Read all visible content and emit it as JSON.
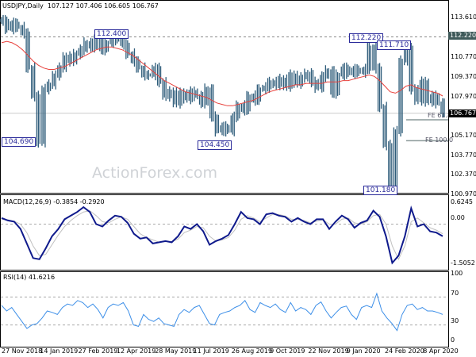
{
  "header": {
    "symbol": "USDJPY,Daily",
    "ohlc": "107.127 107.406 106.605 106.767"
  },
  "watermark": "ActionForex.com",
  "chart_data": [
    {
      "type": "bar",
      "pane": "price",
      "ylim": [
        100.9,
        114.3
      ],
      "y_ticks": [
        "113.610",
        "110.770",
        "109.370",
        "107.970",
        "105.170",
        "103.770",
        "102.370",
        "100.970"
      ],
      "last_price": "106.767",
      "resistance_level": "112.220",
      "hidden_tick": "106.570",
      "close": [
        113.4,
        112.8,
        113.2,
        112.9,
        112.5,
        110.0,
        108.0,
        104.69,
        108.5,
        108.8,
        109.5,
        110.0,
        110.8,
        110.5,
        111.0,
        111.3,
        111.8,
        111.5,
        112.0,
        111.3,
        111.8,
        112.2,
        112.0,
        111.7,
        111.0,
        110.5,
        110.0,
        109.5,
        109.5,
        110.0,
        109.0,
        108.0,
        108.3,
        107.5,
        108.2,
        107.8,
        108.3,
        108.0,
        107.5,
        108.5,
        106.5,
        105.5,
        105.8,
        105.5,
        106.5,
        107.3,
        107.0,
        108.0,
        107.7,
        108.5,
        108.6,
        109.0,
        108.8,
        109.2,
        108.7,
        109.5,
        108.9,
        109.3,
        109.6,
        109.0,
        108.6,
        109.4,
        109.8,
        108.2,
        109.5,
        110.0,
        109.6,
        109.9,
        109.7,
        109.9,
        111.5,
        110.0,
        107.2,
        104.5,
        101.5,
        105.5,
        110.5,
        111.4,
        108.5,
        107.7,
        109.0,
        107.6,
        108.0,
        107.5,
        106.8
      ],
      "moving_average": [
        111.8,
        111.9,
        111.8,
        111.6,
        111.3,
        110.9,
        110.5,
        110.2,
        110.0,
        109.9,
        109.9,
        110.0,
        110.1,
        110.3,
        110.5,
        110.7,
        110.9,
        111.1,
        111.3,
        111.4,
        111.5,
        111.5,
        111.4,
        111.3,
        111.1,
        110.9,
        110.6,
        110.3,
        110.0,
        109.7,
        109.4,
        109.1,
        108.9,
        108.7,
        108.5,
        108.3,
        108.2,
        108.1,
        108.0,
        107.9,
        107.7,
        107.5,
        107.4,
        107.3,
        107.3,
        107.4,
        107.5,
        107.6,
        107.7,
        107.9,
        108.1,
        108.3,
        108.4,
        108.5,
        108.6,
        108.7,
        108.8,
        108.8,
        108.9,
        108.9,
        108.9,
        108.9,
        109.0,
        109.0,
        109.0,
        109.1,
        109.1,
        109.2,
        109.3,
        109.4,
        109.5,
        109.4,
        109.1,
        108.7,
        108.3,
        108.2,
        108.4,
        108.7,
        108.8,
        108.6,
        108.5,
        108.4,
        108.3,
        108.2,
        108.0
      ],
      "annotations": [
        {
          "text": "112.400",
          "kind": "swing-high"
        },
        {
          "text": "104.690",
          "kind": "swing-low"
        },
        {
          "text": "104.450",
          "kind": "swing-low"
        },
        {
          "text": "112.220",
          "kind": "swing-high"
        },
        {
          "text": "111.710",
          "kind": "swing-high"
        },
        {
          "text": "101.180",
          "kind": "swing-low"
        },
        {
          "text": "FE 61.8",
          "kind": "fibonacci-extension",
          "value": 106.3
        },
        {
          "text": "FE 100.0",
          "kind": "fibonacci-extension",
          "value": 104.8
        }
      ],
      "colors": {
        "bars": "#2e5c7a",
        "moving_average": "#e8413c",
        "label": "#2a2a9a"
      }
    },
    {
      "type": "line",
      "pane": "macd",
      "title": "MACD(12,26,9) -0.3854 -0.2920",
      "ylim": [
        -1.75,
        0.8
      ],
      "y_ticks": [
        "0.6245",
        "0.00",
        "-1.5052"
      ],
      "macd": [
        0.25,
        0.15,
        0.1,
        -0.2,
        -0.8,
        -1.4,
        -1.45,
        -1.0,
        -0.5,
        -0.2,
        0.2,
        0.35,
        0.5,
        0.7,
        0.5,
        0.0,
        -0.1,
        0.15,
        0.35,
        0.3,
        0.05,
        -0.4,
        -0.6,
        -0.55,
        -0.8,
        -0.75,
        -0.7,
        -0.75,
        -0.5,
        -0.1,
        -0.2,
        0.0,
        -0.3,
        -0.85,
        -0.7,
        -0.6,
        -0.45,
        0.0,
        0.5,
        0.25,
        0.2,
        0.0,
        0.4,
        0.45,
        0.35,
        0.3,
        0.1,
        0.25,
        0.1,
        0.0,
        0.2,
        0.2,
        -0.2,
        0.1,
        0.35,
        0.2,
        -0.15,
        0.05,
        0.15,
        0.55,
        0.3,
        -0.5,
        -1.6,
        -1.3,
        -0.5,
        0.65,
        -0.1,
        0.0,
        -0.3,
        -0.35,
        -0.5
      ],
      "signal": [
        0.2,
        0.18,
        0.12,
        0.0,
        -0.35,
        -0.9,
        -1.3,
        -1.25,
        -0.85,
        -0.45,
        -0.1,
        0.15,
        0.35,
        0.5,
        0.55,
        0.35,
        0.1,
        0.05,
        0.2,
        0.3,
        0.2,
        -0.1,
        -0.4,
        -0.55,
        -0.65,
        -0.75,
        -0.72,
        -0.72,
        -0.62,
        -0.35,
        -0.25,
        -0.1,
        -0.15,
        -0.5,
        -0.7,
        -0.65,
        -0.55,
        -0.25,
        0.2,
        0.35,
        0.25,
        0.1,
        0.25,
        0.4,
        0.4,
        0.33,
        0.2,
        0.2,
        0.15,
        0.05,
        0.12,
        0.18,
        0.0,
        0.0,
        0.2,
        0.25,
        0.05,
        0.0,
        0.1,
        0.35,
        0.4,
        0.0,
        -0.9,
        -1.45,
        -0.9,
        0.1,
        0.25,
        0.05,
        -0.15,
        -0.25,
        -0.4
      ],
      "colors": {
        "macd": "#0f1a8c",
        "signal": "#c0c0c0"
      }
    },
    {
      "type": "line",
      "pane": "rsi",
      "title": "RSI(14) 41.6216",
      "ylim": [
        0,
        100
      ],
      "y_ticks": [
        "100",
        "70",
        "30",
        "0"
      ],
      "levels": [
        70,
        30
      ],
      "rsi": [
        58,
        50,
        55,
        45,
        35,
        25,
        30,
        32,
        40,
        50,
        48,
        45,
        55,
        60,
        58,
        65,
        62,
        55,
        60,
        52,
        40,
        55,
        60,
        58,
        62,
        50,
        30,
        28,
        45,
        38,
        35,
        40,
        32,
        30,
        28,
        45,
        52,
        48,
        55,
        58,
        45,
        32,
        30,
        45,
        48,
        50,
        55,
        58,
        65,
        52,
        48,
        62,
        58,
        55,
        60,
        52,
        48,
        62,
        50,
        55,
        52,
        45,
        58,
        63,
        50,
        40,
        48,
        55,
        57,
        45,
        38,
        55,
        58,
        55,
        75,
        50,
        40,
        32,
        22,
        45,
        58,
        60,
        52,
        55,
        50,
        50,
        48,
        45
      ],
      "colors": {
        "rsi": "#3d8fe8"
      }
    }
  ],
  "x_axis": {
    "labels": [
      "27 Nov 2018",
      "14 Jan 2019",
      "27 Feb 2019",
      "12 Apr 2019",
      "28 May 2019",
      "11 Jul 2019",
      "26 Aug 2019",
      "9 Oct 2019",
      "22 Nov 2019",
      "9 Jan 2020",
      "24 Feb 2020",
      "8 Apr 2020"
    ]
  }
}
